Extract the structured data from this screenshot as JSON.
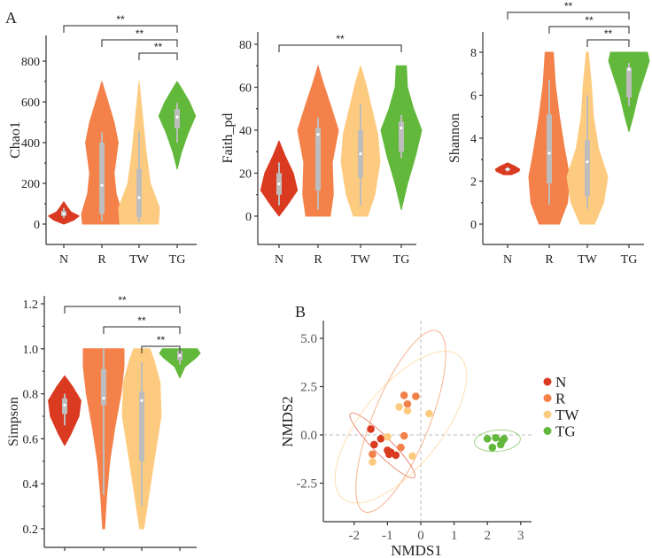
{
  "panel_labels": {
    "a": "A",
    "b": "B"
  },
  "colors": {
    "N": "#d93a20",
    "R": "#f4814a",
    "TW": "#fdcb7f",
    "TG": "#62b83b",
    "box": "#bdbdbd"
  },
  "chart_data": [
    {
      "type": "violin",
      "id": "chao1",
      "ylabel": "Chao1",
      "categories": [
        "N",
        "R",
        "TW",
        "TG"
      ],
      "yticks": [
        "0",
        "200",
        "400",
        "600",
        "800"
      ],
      "ytick_values": [
        0,
        200,
        400,
        600,
        800
      ],
      "ylim": [
        -100,
        900
      ],
      "significance": [
        {
          "from": "N",
          "to": "TG",
          "label": "**"
        },
        {
          "from": "R",
          "to": "TG",
          "label": "**"
        },
        {
          "from": "TW",
          "to": "TG",
          "label": "**"
        }
      ],
      "groups": [
        {
          "name": "N",
          "density": [
            [
              0,
              0
            ],
            [
              20,
              0.5
            ],
            [
              40,
              0.75
            ],
            [
              60,
              0.35
            ],
            [
              80,
              0.2
            ],
            [
              110,
              0
            ]
          ],
          "box": {
            "min": 30,
            "q1": 40,
            "median": 50,
            "q3": 65,
            "max": 80
          }
        },
        {
          "name": "R",
          "density": [
            [
              0,
              0.95
            ],
            [
              50,
              1
            ],
            [
              150,
              0.7
            ],
            [
              250,
              0.6
            ],
            [
              400,
              0.8
            ],
            [
              500,
              0.6
            ],
            [
              600,
              0.3
            ],
            [
              700,
              0
            ]
          ],
          "box": {
            "min": 15,
            "q1": 50,
            "median": 190,
            "q3": 400,
            "max": 450
          }
        },
        {
          "name": "TW",
          "density": [
            [
              0,
              0.95
            ],
            [
              80,
              1
            ],
            [
              200,
              0.55
            ],
            [
              350,
              0.35
            ],
            [
              500,
              0.2
            ],
            [
              600,
              0.1
            ],
            [
              700,
              0
            ]
          ],
          "box": {
            "min": 10,
            "q1": 35,
            "median": 130,
            "q3": 270,
            "max": 455
          }
        },
        {
          "name": "TG",
          "density": [
            [
              270,
              0
            ],
            [
              350,
              0.2
            ],
            [
              450,
              0.55
            ],
            [
              530,
              0.9
            ],
            [
              600,
              0.6
            ],
            [
              660,
              0.25
            ],
            [
              700,
              0
            ]
          ],
          "box": {
            "min": 400,
            "q1": 470,
            "median": 525,
            "q3": 565,
            "max": 595
          }
        }
      ]
    },
    {
      "type": "violin",
      "id": "faith_pd",
      "ylabel": "Faith_pd",
      "categories": [
        "N",
        "R",
        "TW",
        "TG"
      ],
      "yticks": [
        "0",
        "20",
        "40",
        "60",
        "80"
      ],
      "ytick_values": [
        0,
        20,
        40,
        60,
        80
      ],
      "ylim": [
        -8,
        88
      ],
      "significance": [
        {
          "from": "N",
          "to": "TG",
          "label": "**"
        }
      ],
      "groups": [
        {
          "name": "N",
          "density": [
            [
              0,
              0
            ],
            [
              5,
              0.4
            ],
            [
              12,
              0.9
            ],
            [
              20,
              0.7
            ],
            [
              28,
              0.3
            ],
            [
              35,
              0
            ]
          ],
          "box": {
            "min": 5,
            "q1": 10,
            "median": 15,
            "q3": 20,
            "max": 25
          }
        },
        {
          "name": "R",
          "density": [
            [
              0,
              0.6
            ],
            [
              10,
              0.75
            ],
            [
              25,
              0.7
            ],
            [
              40,
              1
            ],
            [
              52,
              0.6
            ],
            [
              62,
              0.25
            ],
            [
              70,
              0
            ]
          ],
          "box": {
            "min": 3,
            "q1": 12,
            "median": 38,
            "q3": 41,
            "max": 46
          }
        },
        {
          "name": "TW",
          "density": [
            [
              0,
              0.35
            ],
            [
              10,
              0.7
            ],
            [
              25,
              0.95
            ],
            [
              38,
              0.85
            ],
            [
              50,
              0.55
            ],
            [
              62,
              0.25
            ],
            [
              70,
              0
            ]
          ],
          "box": {
            "min": 5,
            "q1": 18,
            "median": 29,
            "q3": 40,
            "max": 52
          }
        },
        {
          "name": "TG",
          "density": [
            [
              3,
              0
            ],
            [
              15,
              0.3
            ],
            [
              28,
              0.7
            ],
            [
              40,
              1
            ],
            [
              50,
              0.6
            ],
            [
              60,
              0.3
            ],
            [
              70,
              0.25
            ]
          ],
          "box": {
            "min": 27,
            "q1": 30,
            "median": 41,
            "q3": 44,
            "max": 47
          }
        }
      ]
    },
    {
      "type": "violin",
      "id": "shannon",
      "ylabel": "Shannon",
      "categories": [
        "N",
        "R",
        "TW",
        "TG"
      ],
      "yticks": [
        "0",
        "2",
        "4",
        "6",
        "8"
      ],
      "ytick_values": [
        0,
        2,
        4,
        6,
        8
      ],
      "ylim": [
        -0.8,
        8.8
      ],
      "significance": [
        {
          "from": "N",
          "to": "TG",
          "label": "**"
        },
        {
          "from": "R",
          "to": "TG",
          "label": "**"
        },
        {
          "from": "TW",
          "to": "TG",
          "label": "**"
        }
      ],
      "groups": [
        {
          "name": "N",
          "density": [
            [
              2.3,
              0.2
            ],
            [
              2.45,
              0.55
            ],
            [
              2.55,
              0.6
            ],
            [
              2.7,
              0.35
            ],
            [
              2.85,
              0
            ]
          ],
          "box": {
            "min": 2.45,
            "q1": 2.5,
            "median": 2.55,
            "q3": 2.6,
            "max": 2.65
          }
        },
        {
          "name": "R",
          "density": [
            [
              0,
              0.5
            ],
            [
              1,
              0.9
            ],
            [
              2.2,
              1
            ],
            [
              3.5,
              0.75
            ],
            [
              5,
              0.5
            ],
            [
              6.5,
              0.3
            ],
            [
              8,
              0.2
            ]
          ],
          "box": {
            "min": 0.9,
            "q1": 1.9,
            "median": 3.3,
            "q3": 5.1,
            "max": 6.7
          }
        },
        {
          "name": "TW",
          "density": [
            [
              0,
              0.35
            ],
            [
              1,
              0.8
            ],
            [
              2.2,
              1
            ],
            [
              3.5,
              0.55
            ],
            [
              5,
              0.3
            ],
            [
              6.5,
              0.2
            ],
            [
              8,
              0.05
            ]
          ],
          "box": {
            "min": 0.7,
            "q1": 1.3,
            "median": 2.9,
            "q3": 3.9,
            "max": 6
          }
        },
        {
          "name": "TG",
          "density": [
            [
              4.3,
              0
            ],
            [
              5,
              0.2
            ],
            [
              6,
              0.45
            ],
            [
              7,
              0.8
            ],
            [
              7.6,
              1
            ],
            [
              8,
              0.9
            ]
          ],
          "box": {
            "min": 5.5,
            "q1": 5.9,
            "median": 7.2,
            "q3": 7.3,
            "max": 7.5
          }
        }
      ]
    },
    {
      "type": "violin",
      "id": "simpson",
      "ylabel": "Simpson",
      "categories": [
        "N",
        "R",
        "TW",
        "TG"
      ],
      "yticks": [
        "0.2",
        "0.4",
        "0.6",
        "0.8",
        "1.0",
        "1.2"
      ],
      "ytick_values": [
        0.2,
        0.4,
        0.6,
        0.8,
        1.0,
        1.2
      ],
      "ylim": [
        0.12,
        1.25
      ],
      "significance": [
        {
          "from": "N",
          "to": "TG",
          "label": "**"
        },
        {
          "from": "R",
          "to": "TG",
          "label": "**"
        },
        {
          "from": "TW",
          "to": "TG",
          "label": "**"
        }
      ],
      "groups": [
        {
          "name": "N",
          "density": [
            [
              0.57,
              0
            ],
            [
              0.62,
              0.3
            ],
            [
              0.7,
              0.7
            ],
            [
              0.77,
              0.8
            ],
            [
              0.83,
              0.4
            ],
            [
              0.88,
              0
            ]
          ],
          "box": {
            "min": 0.66,
            "q1": 0.71,
            "median": 0.75,
            "q3": 0.78,
            "max": 0.8
          }
        },
        {
          "name": "R",
          "density": [
            [
              0.2,
              0.05
            ],
            [
              0.35,
              0.15
            ],
            [
              0.5,
              0.3
            ],
            [
              0.65,
              0.55
            ],
            [
              0.8,
              0.85
            ],
            [
              0.92,
              1
            ],
            [
              1.0,
              1
            ]
          ],
          "box": {
            "min": 0.35,
            "q1": 0.75,
            "median": 0.78,
            "q3": 0.91,
            "max": 1.0
          }
        },
        {
          "name": "TW",
          "density": [
            [
              0.2,
              0.1
            ],
            [
              0.35,
              0.35
            ],
            [
              0.5,
              0.6
            ],
            [
              0.7,
              0.95
            ],
            [
              0.85,
              0.9
            ],
            [
              0.95,
              0.6
            ],
            [
              1.0,
              0.4
            ]
          ],
          "box": {
            "min": 0.3,
            "q1": 0.5,
            "median": 0.77,
            "q3": 0.81,
            "max": 0.94
          }
        },
        {
          "name": "TG",
          "density": [
            [
              0.87,
              0
            ],
            [
              0.92,
              0.25
            ],
            [
              0.96,
              0.8
            ],
            [
              0.98,
              1
            ],
            [
              1.0,
              0.85
            ]
          ],
          "box": {
            "min": 0.93,
            "q1": 0.95,
            "median": 0.97,
            "q3": 0.99,
            "max": 1.0
          }
        }
      ]
    },
    {
      "type": "scatter",
      "id": "nmds",
      "xlabel": "NMDS1",
      "ylabel": "NMDS2",
      "xticks": [
        "-2",
        "-1",
        "0",
        "1",
        "2",
        "3"
      ],
      "xtick_values": [
        -2,
        -1,
        0,
        1,
        2,
        3
      ],
      "yticks": [
        "-2.5",
        "0.0",
        "2.5",
        "5.0"
      ],
      "ytick_values": [
        -2.5,
        0,
        2.5,
        5.0
      ],
      "legend": [
        "N",
        "R",
        "TW",
        "TG"
      ],
      "legend_position": "right",
      "series": [
        {
          "name": "N",
          "points": [
            [
              -1.5,
              0.3
            ],
            [
              -1.2,
              -0.2
            ],
            [
              -1.4,
              -0.5
            ],
            [
              -1.0,
              -0.8
            ],
            [
              -0.95,
              -1.0
            ],
            [
              -0.9,
              -0.9
            ],
            [
              -0.75,
              -1.05
            ]
          ],
          "ellipse_center": [
            -1.15,
            -0.55
          ]
        },
        {
          "name": "R",
          "points": [
            [
              -0.5,
              2.05
            ],
            [
              -0.15,
              2.0
            ],
            [
              -0.4,
              1.6
            ],
            [
              -0.5,
              -0.05
            ],
            [
              -0.6,
              -0.65
            ],
            [
              -1.45,
              -1.0
            ]
          ],
          "ellipse_center": [
            -0.6,
            0.7
          ]
        },
        {
          "name": "TW",
          "points": [
            [
              -0.65,
              1.45
            ],
            [
              -0.4,
              1.25
            ],
            [
              0.25,
              1.1
            ],
            [
              -1.0,
              -0.1
            ],
            [
              -0.25,
              -1.1
            ],
            [
              -1.45,
              -1.4
            ]
          ],
          "ellipse_center": [
            -0.6,
            0.4
          ]
        },
        {
          "name": "TG",
          "points": [
            [
              2.0,
              -0.2
            ],
            [
              2.25,
              -0.15
            ],
            [
              2.5,
              -0.2
            ],
            [
              2.15,
              -0.65
            ],
            [
              2.4,
              -0.5
            ],
            [
              2.45,
              -0.3
            ]
          ],
          "ellipse_center": [
            2.3,
            -0.3
          ]
        }
      ]
    }
  ]
}
